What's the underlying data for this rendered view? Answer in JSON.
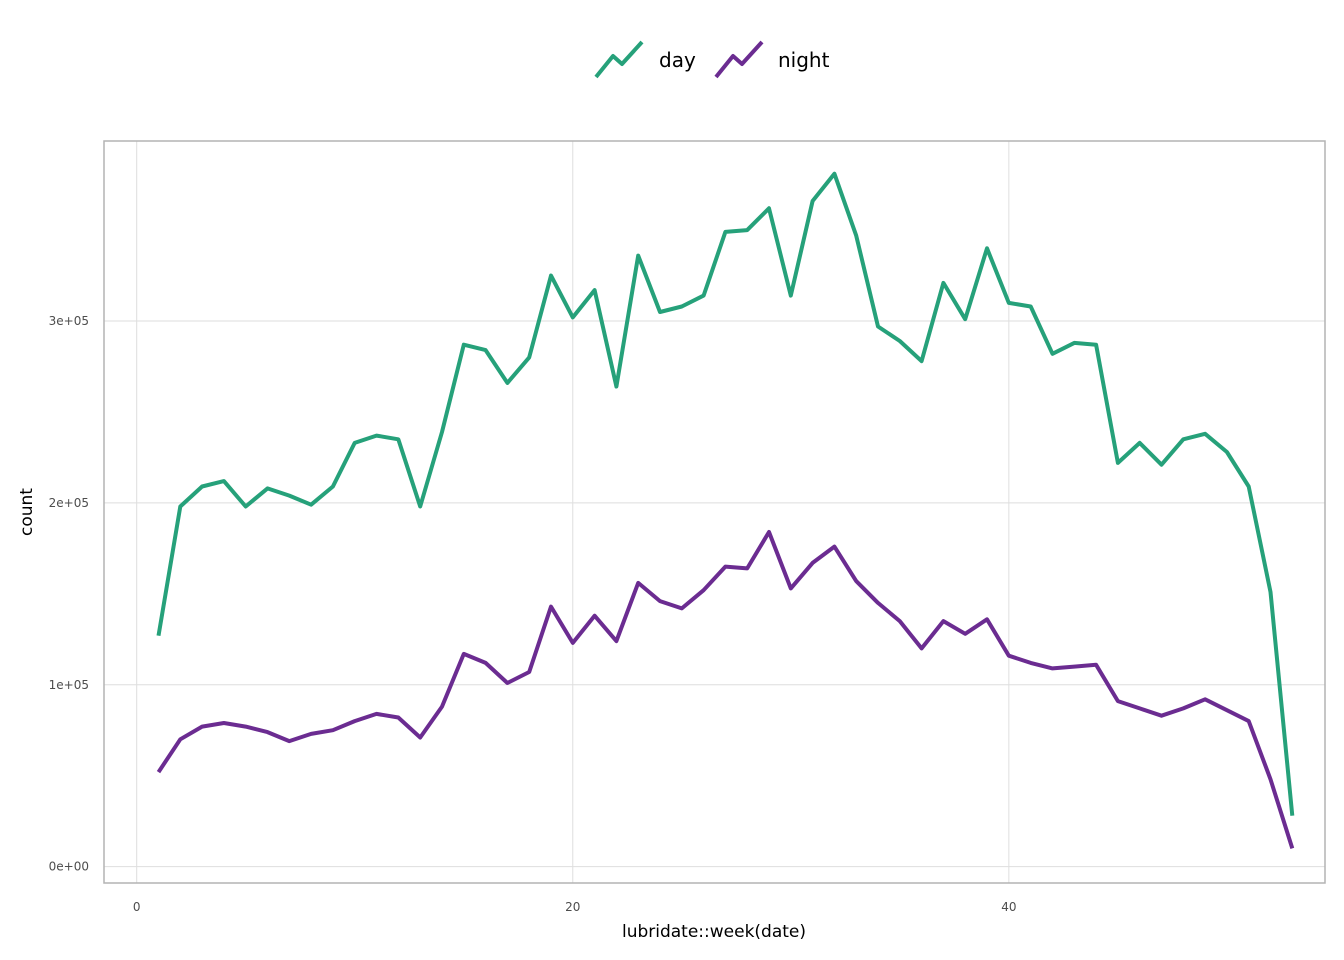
{
  "chart_data": {
    "type": "line",
    "title": "",
    "xlabel": "lubridate::week(date)",
    "ylabel": "count",
    "xlim": [
      -1.5,
      54.5
    ],
    "ylim": [
      -9000,
      399000
    ],
    "x_ticks": [
      0,
      20,
      40
    ],
    "x_tick_labels": [
      "0",
      "20",
      "40"
    ],
    "y_ticks": [
      0,
      100000,
      200000,
      300000
    ],
    "y_tick_labels": [
      "0e+00",
      "1e+05",
      "2e+05",
      "3e+05"
    ],
    "grid": true,
    "legend_position": "top",
    "x": [
      1,
      2,
      3,
      4,
      5,
      6,
      7,
      8,
      9,
      10,
      11,
      12,
      13,
      14,
      15,
      16,
      17,
      18,
      19,
      20,
      21,
      22,
      23,
      24,
      25,
      26,
      27,
      28,
      29,
      30,
      31,
      32,
      33,
      34,
      35,
      36,
      37,
      38,
      39,
      40,
      41,
      42,
      43,
      44,
      45,
      46,
      47,
      48,
      49,
      50,
      51,
      52,
      53
    ],
    "series": [
      {
        "name": "day",
        "color": "#26a17a",
        "values": [
          127000,
          198000,
          209000,
          212000,
          198000,
          208000,
          204000,
          199000,
          209000,
          233000,
          237000,
          235000,
          198000,
          239000,
          287000,
          284000,
          266000,
          280000,
          325000,
          302000,
          317000,
          264000,
          336000,
          305000,
          308000,
          314000,
          349000,
          350000,
          362000,
          314000,
          366000,
          381000,
          347000,
          297000,
          289000,
          278000,
          321000,
          301000,
          340000,
          310000,
          308000,
          282000,
          288000,
          287000,
          222000,
          233000,
          221000,
          235000,
          238000,
          228000,
          209000,
          151000,
          28000
        ]
      },
      {
        "name": "night",
        "color": "#6b2c91",
        "values": [
          52000,
          70000,
          77000,
          79000,
          77000,
          74000,
          69000,
          73000,
          75000,
          80000,
          84000,
          82000,
          71000,
          88000,
          117000,
          112000,
          101000,
          107000,
          143000,
          123000,
          138000,
          124000,
          156000,
          146000,
          142000,
          152000,
          165000,
          164000,
          184000,
          153000,
          167000,
          176000,
          157000,
          145000,
          135000,
          120000,
          135000,
          128000,
          136000,
          116000,
          112000,
          109000,
          110000,
          111000,
          91000,
          87000,
          83000,
          87000,
          92000,
          86000,
          80000,
          48000,
          10000
        ]
      }
    ]
  }
}
